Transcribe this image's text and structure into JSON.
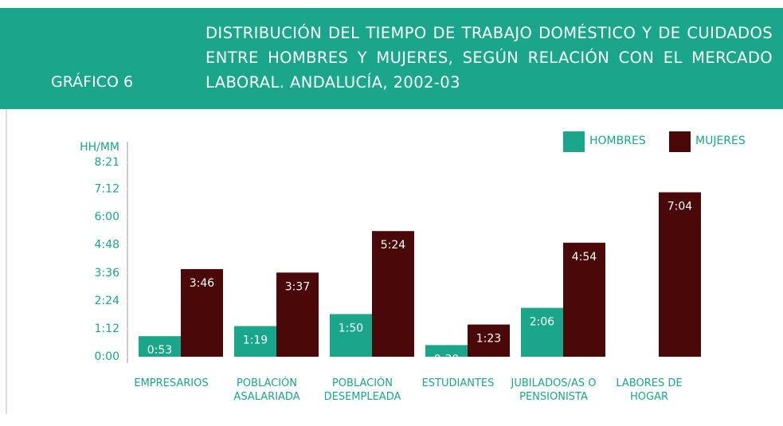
{
  "chart_data": {
    "type": "bar",
    "label": "GRÁFICO 6",
    "title": "DISTRIBUCIÓN DEL TIEMPO DE TRABAJO DOMÉSTICO Y DE CUIDADOS ENTRE HOMBRES Y MUJERES, SEGÚN RELACIÓN CON EL MERCADO LABORAL. ANDALUCÍA, 2002-03",
    "y_axis_label": "HH/MM",
    "categories": [
      "EMPRESARIOS",
      "POBLACIÓN\nASALARIADA",
      "POBLACIÓN\nDESEMPLEADA",
      "ESTUDIANTES",
      "JUBILADOS/AS O\nPENSIONISTA",
      "LABORES DE\nHOGAR"
    ],
    "series": [
      {
        "name": "HOMBRES",
        "color": "#1aa68b",
        "values": [
          53,
          79,
          110,
          30,
          126,
          null
        ],
        "value_labels": [
          "0:53",
          "1:19",
          "1:50",
          "0:30",
          "2:06",
          null
        ]
      },
      {
        "name": "MUJERES",
        "color": "#4b0808",
        "values": [
          226,
          217,
          324,
          83,
          294,
          424
        ],
        "value_labels": [
          "3:46",
          "3:37",
          "5:24",
          "1:23",
          "4:54",
          "7:04"
        ]
      }
    ],
    "ylim": [
      0,
      501
    ],
    "yticks": [
      {
        "value": 0,
        "label": "0:00"
      },
      {
        "value": 72,
        "label": "1:12"
      },
      {
        "value": 144,
        "label": "2:24"
      },
      {
        "value": 216,
        "label": "3:36"
      },
      {
        "value": 288,
        "label": "4:48"
      },
      {
        "value": 360,
        "label": "6:00"
      },
      {
        "value": 432,
        "label": "7:12"
      },
      {
        "value": 501,
        "label": "8:21"
      }
    ],
    "legend": "top-right"
  }
}
